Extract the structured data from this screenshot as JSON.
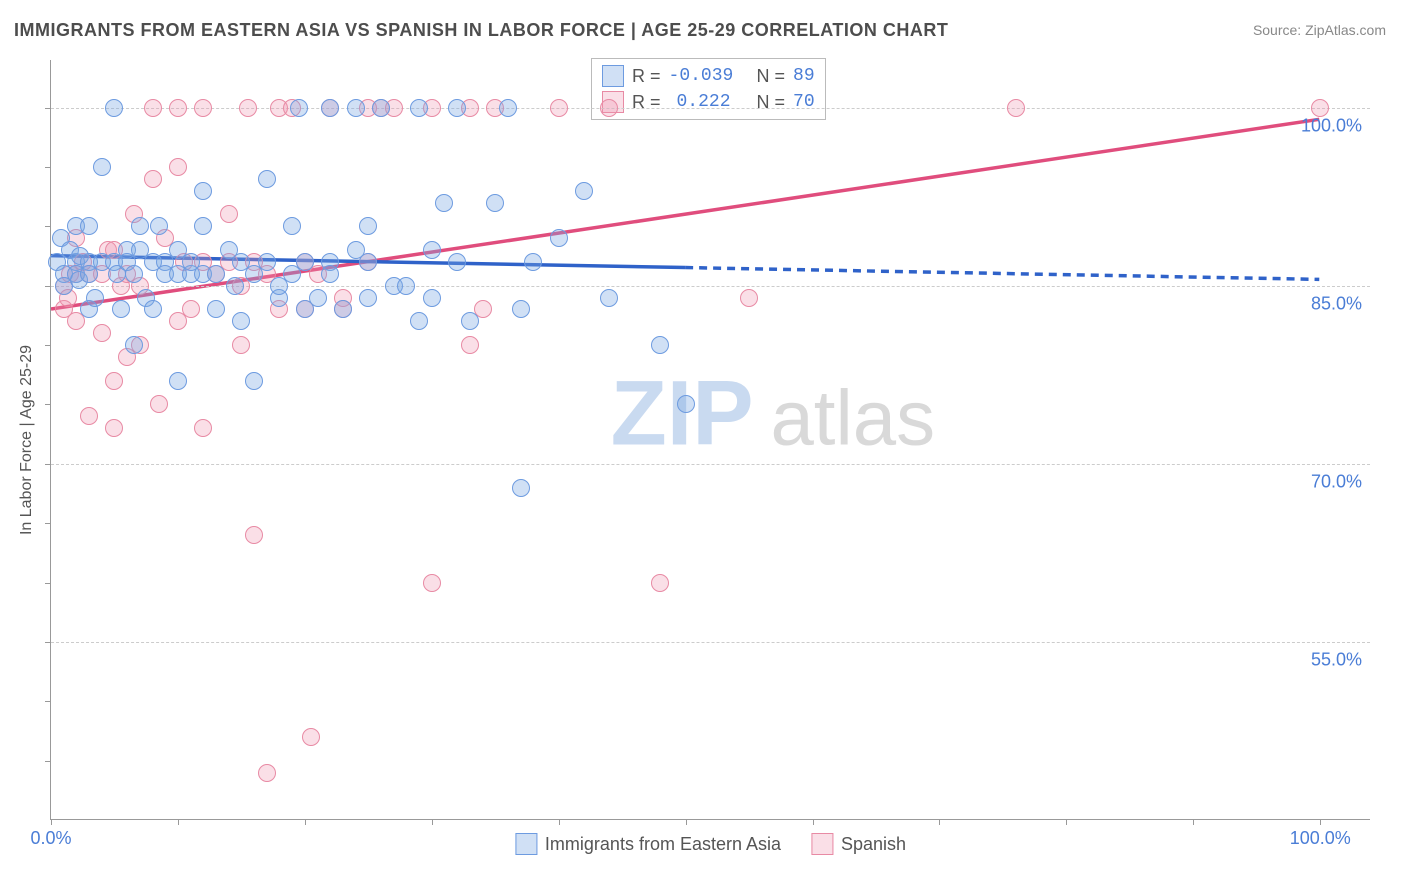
{
  "title": "IMMIGRANTS FROM EASTERN ASIA VS SPANISH IN LABOR FORCE | AGE 25-29 CORRELATION CHART",
  "source_label": "Source: ZipAtlas.com",
  "ylabel": "In Labor Force | Age 25-29",
  "watermark_a": "ZIP",
  "watermark_b": "atlas",
  "chart": {
    "type": "scatter-with-regression",
    "xlim": [
      0,
      104
    ],
    "ylim": [
      40,
      104
    ],
    "xtick_labels": [
      "0.0%",
      "100.0%"
    ],
    "xtick_positions_pct": [
      0,
      100
    ],
    "xtick_minor_positions_pct": [
      10,
      20,
      30,
      40,
      50,
      60,
      70,
      80,
      90
    ],
    "ytick_labels": [
      "55.0%",
      "70.0%",
      "85.0%",
      "100.0%"
    ],
    "ytick_values": [
      55,
      70,
      85,
      100
    ],
    "grid_color": "#cccccc",
    "background_color": "#ffffff",
    "axis_color": "#999999",
    "tick_label_color": "#4a7dd6",
    "series": {
      "a": {
        "label": "Immigrants from Eastern Asia",
        "fill": "rgba(120,165,225,0.35)",
        "stroke": "#6d9be0",
        "line_color": "#2f62c9",
        "R": "-0.039",
        "N": "89",
        "trend": {
          "x1_pct": 0,
          "y1": 87.5,
          "x2_pct": 50,
          "y2": 86.5,
          "dash_x2_pct": 100,
          "dash_y2": 85.5
        },
        "points": [
          [
            0.5,
            87
          ],
          [
            0.8,
            89
          ],
          [
            1,
            86
          ],
          [
            1,
            85
          ],
          [
            1.5,
            88
          ],
          [
            2,
            87
          ],
          [
            2,
            90
          ],
          [
            2,
            86
          ],
          [
            2.2,
            85.5
          ],
          [
            2.3,
            87.5
          ],
          [
            3,
            87
          ],
          [
            3,
            86
          ],
          [
            3,
            83
          ],
          [
            3,
            90
          ],
          [
            3.5,
            84
          ],
          [
            4,
            87
          ],
          [
            4,
            95
          ],
          [
            5,
            87
          ],
          [
            5,
            100
          ],
          [
            5.2,
            86
          ],
          [
            5.5,
            83
          ],
          [
            6,
            88
          ],
          [
            6,
            87
          ],
          [
            6.5,
            86
          ],
          [
            6.5,
            80
          ],
          [
            7,
            88
          ],
          [
            7,
            90
          ],
          [
            7.5,
            84
          ],
          [
            8,
            87
          ],
          [
            8,
            83
          ],
          [
            8.5,
            90
          ],
          [
            9,
            87
          ],
          [
            9,
            86
          ],
          [
            10,
            88
          ],
          [
            10,
            86
          ],
          [
            10,
            77
          ],
          [
            11,
            86
          ],
          [
            11,
            87
          ],
          [
            12,
            93
          ],
          [
            12,
            86
          ],
          [
            12,
            90
          ],
          [
            13,
            86
          ],
          [
            13,
            83
          ],
          [
            14,
            88
          ],
          [
            14.5,
            85
          ],
          [
            15,
            87
          ],
          [
            15,
            82
          ],
          [
            16,
            86
          ],
          [
            16,
            77
          ],
          [
            17,
            87
          ],
          [
            17,
            94
          ],
          [
            18,
            84
          ],
          [
            18,
            85
          ],
          [
            19,
            90
          ],
          [
            19,
            86
          ],
          [
            19.5,
            100
          ],
          [
            20,
            83
          ],
          [
            20,
            87
          ],
          [
            21,
            84
          ],
          [
            22,
            87
          ],
          [
            22,
            100
          ],
          [
            22,
            86
          ],
          [
            23,
            83
          ],
          [
            24,
            88
          ],
          [
            24,
            100
          ],
          [
            25,
            90
          ],
          [
            25,
            84
          ],
          [
            25,
            87
          ],
          [
            26,
            100
          ],
          [
            27,
            85
          ],
          [
            28,
            85
          ],
          [
            29,
            100
          ],
          [
            29,
            82
          ],
          [
            30,
            84
          ],
          [
            30,
            88
          ],
          [
            31,
            92
          ],
          [
            32,
            87
          ],
          [
            32,
            100
          ],
          [
            33,
            82
          ],
          [
            35,
            92
          ],
          [
            36,
            100
          ],
          [
            37,
            83
          ],
          [
            37,
            68
          ],
          [
            38,
            87
          ],
          [
            40,
            89
          ],
          [
            42,
            93
          ],
          [
            44,
            84
          ],
          [
            48,
            80
          ],
          [
            50,
            75
          ]
        ]
      },
      "b": {
        "label": "Spanish",
        "fill": "rgba(240,150,175,0.30)",
        "stroke": "#e88aa4",
        "line_color": "#e04d7d",
        "R": "0.222",
        "N": "70",
        "trend": {
          "x1_pct": 0,
          "y1": 83,
          "x2_pct": 100,
          "y2": 99
        },
        "points": [
          [
            1,
            83
          ],
          [
            1,
            85
          ],
          [
            1.3,
            84
          ],
          [
            1.5,
            86
          ],
          [
            2,
            86
          ],
          [
            2,
            82
          ],
          [
            2,
            89
          ],
          [
            2.5,
            87
          ],
          [
            3,
            86
          ],
          [
            3,
            74
          ],
          [
            4,
            81
          ],
          [
            4,
            86
          ],
          [
            4.5,
            88
          ],
          [
            5,
            88
          ],
          [
            5,
            77
          ],
          [
            5,
            73
          ],
          [
            5.5,
            85
          ],
          [
            6,
            86
          ],
          [
            6,
            79
          ],
          [
            6.5,
            91
          ],
          [
            7,
            85
          ],
          [
            7,
            80
          ],
          [
            8,
            94
          ],
          [
            8,
            100
          ],
          [
            8.5,
            75
          ],
          [
            9,
            89
          ],
          [
            10,
            82
          ],
          [
            10,
            95
          ],
          [
            10,
            100
          ],
          [
            10.5,
            87
          ],
          [
            11,
            83
          ],
          [
            12,
            87
          ],
          [
            12,
            100
          ],
          [
            12,
            73
          ],
          [
            13,
            86
          ],
          [
            14,
            87
          ],
          [
            14,
            91
          ],
          [
            15,
            85
          ],
          [
            15,
            80
          ],
          [
            15.5,
            100
          ],
          [
            16,
            87
          ],
          [
            16,
            64
          ],
          [
            17,
            86
          ],
          [
            17,
            44
          ],
          [
            18,
            83
          ],
          [
            18,
            100
          ],
          [
            19,
            100
          ],
          [
            20,
            87
          ],
          [
            20,
            83
          ],
          [
            20.5,
            47
          ],
          [
            21,
            86
          ],
          [
            22,
            100
          ],
          [
            23,
            84
          ],
          [
            23,
            83
          ],
          [
            25,
            100
          ],
          [
            25,
            87
          ],
          [
            26,
            100
          ],
          [
            27,
            100
          ],
          [
            30,
            100
          ],
          [
            30,
            60
          ],
          [
            33,
            100
          ],
          [
            33,
            80
          ],
          [
            34,
            83
          ],
          [
            35,
            100
          ],
          [
            40,
            100
          ],
          [
            44,
            100
          ],
          [
            48,
            60
          ],
          [
            55,
            84
          ],
          [
            76,
            100
          ],
          [
            100,
            100
          ]
        ]
      }
    }
  },
  "legend_top": {
    "r_prefix": "R =",
    "n_prefix": "N ="
  }
}
